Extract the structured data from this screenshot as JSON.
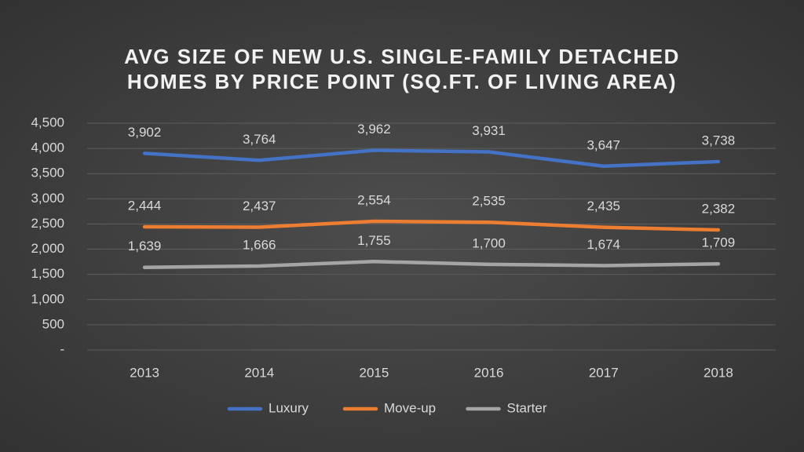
{
  "chart_data": {
    "type": "line",
    "title": "AVG SIZE OF NEW U.S. SINGLE-FAMILY DETACHED HOMES BY PRICE POINT (SQ.FT. OF LIVING AREA)",
    "categories": [
      "2013",
      "2014",
      "2015",
      "2016",
      "2017",
      "2018"
    ],
    "series": [
      {
        "name": "Luxury",
        "color": "#4472c4",
        "values": [
          3902,
          3764,
          3962,
          3931,
          3647,
          3738
        ],
        "value_labels": [
          "3,902",
          "3,764",
          "3,962",
          "3,931",
          "3,647",
          "3,738"
        ]
      },
      {
        "name": "Move-up",
        "color": "#ed7d31",
        "values": [
          2444,
          2437,
          2554,
          2535,
          2435,
          2382
        ],
        "value_labels": [
          "2,444",
          "2,437",
          "2,554",
          "2,535",
          "2,435",
          "2,382"
        ]
      },
      {
        "name": "Starter",
        "color": "#a5a5a5",
        "values": [
          1639,
          1666,
          1755,
          1700,
          1674,
          1709
        ],
        "value_labels": [
          "1,639",
          "1,666",
          "1,755",
          "1,700",
          "1,674",
          "1,709"
        ]
      }
    ],
    "ylim": [
      0,
      4500
    ],
    "yticks": [
      {
        "value": 0,
        "label": "-"
      },
      500,
      {
        "value": 1000,
        "label": "1,000"
      },
      {
        "value": 1500,
        "label": "1,500"
      },
      {
        "value": 2000,
        "label": "2,000"
      },
      {
        "value": 2500,
        "label": "2,500"
      },
      {
        "value": 3000,
        "label": "3,000"
      },
      {
        "value": 3500,
        "label": "3,500"
      },
      {
        "value": 4000,
        "label": "4,000"
      },
      {
        "value": 4500,
        "label": "4,500"
      }
    ],
    "grid": true,
    "legend": "bottom"
  }
}
